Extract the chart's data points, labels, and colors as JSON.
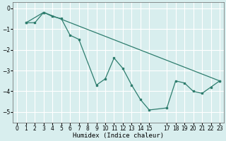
{
  "xlabel": "Humidex (Indice chaleur)",
  "line1_x": [
    1,
    2,
    3,
    4,
    5,
    6,
    7,
    9,
    10,
    11,
    12,
    13,
    14,
    15,
    17,
    18,
    19,
    20,
    21,
    22,
    23
  ],
  "line1_y": [
    -0.7,
    -0.7,
    -0.2,
    -0.4,
    -0.5,
    -1.3,
    -1.5,
    -3.7,
    -3.4,
    -2.4,
    -2.9,
    -3.7,
    -4.4,
    -4.9,
    -4.8,
    -3.5,
    -3.6,
    -4.0,
    -4.1,
    -3.8,
    -3.5
  ],
  "line2_x": [
    1,
    3,
    23
  ],
  "line2_y": [
    -0.7,
    -0.2,
    -3.5
  ],
  "color": "#2e7d6e",
  "bg_color": "#d8eeee",
  "grid_color": "#ffffff",
  "xlim": [
    -0.5,
    23.5
  ],
  "ylim": [
    -5.5,
    0.3
  ],
  "yticks": [
    0,
    -1,
    -2,
    -3,
    -4,
    -5
  ],
  "xtick_vals": [
    0,
    1,
    2,
    3,
    4,
    5,
    6,
    7,
    8,
    9,
    10,
    11,
    12,
    13,
    14,
    15,
    17,
    18,
    19,
    20,
    21,
    22,
    23
  ],
  "xtick_labels": [
    "0",
    "1",
    "2",
    "3",
    "4",
    "5",
    "6",
    "7",
    "8",
    "9",
    "10",
    "11",
    "12",
    "13",
    "14",
    "15",
    "17",
    "18",
    "19",
    "20",
    "21",
    "22",
    "23"
  ]
}
